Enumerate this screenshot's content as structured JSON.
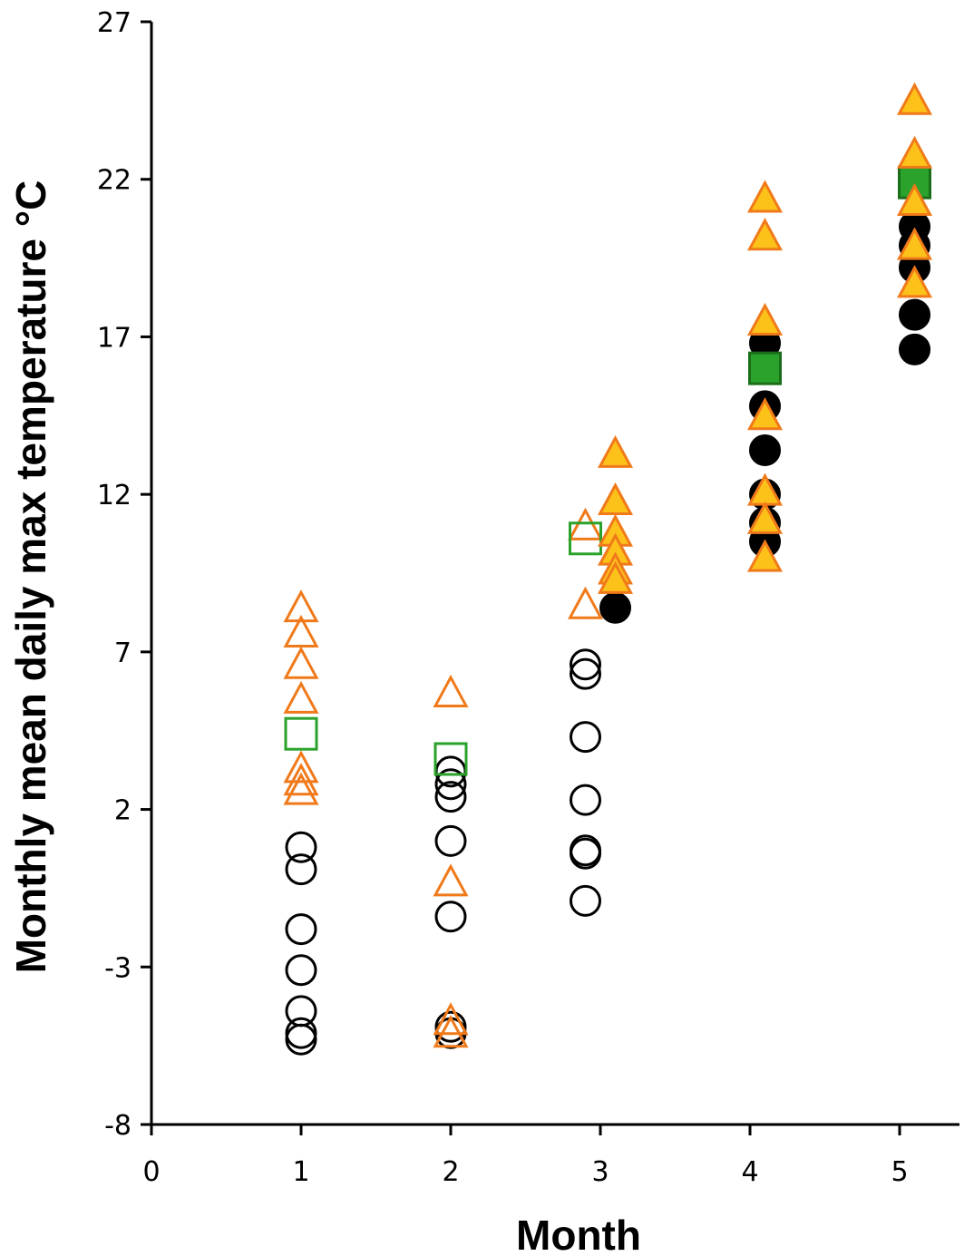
{
  "chart_data": {
    "type": "scatter",
    "title": "",
    "xlabel": "Month",
    "ylabel": "Monthly mean daily max temperature °C",
    "xlim": [
      0,
      5.4
    ],
    "ylim": [
      -8,
      27
    ],
    "xticks": [
      0,
      1,
      2,
      3,
      4,
      5
    ],
    "yticks": [
      -8,
      -3,
      2,
      7,
      12,
      17,
      22,
      27
    ],
    "grid": false,
    "legend": "none",
    "series": [
      {
        "marker": "circle-open",
        "stroke": "#000000",
        "fill": "none",
        "points": [
          [
            1,
            0.8
          ],
          [
            1,
            0.1
          ],
          [
            1,
            -1.8
          ],
          [
            1,
            -3.1
          ],
          [
            1,
            -4.4
          ],
          [
            1,
            -5.1
          ],
          [
            1,
            -5.3
          ],
          [
            2,
            3.2
          ],
          [
            2,
            2.8
          ],
          [
            2,
            2.4
          ],
          [
            2,
            1.0
          ],
          [
            2,
            -1.4
          ],
          [
            2,
            -4.9
          ],
          [
            2,
            -5.1
          ],
          [
            2.9,
            6.6
          ],
          [
            2.9,
            6.3
          ],
          [
            2.9,
            4.3
          ],
          [
            2.9,
            2.3
          ],
          [
            2.9,
            0.7
          ],
          [
            2.9,
            0.6
          ],
          [
            2.9,
            -0.9
          ]
        ]
      },
      {
        "marker": "triangle-open",
        "stroke": "#f07a1a",
        "fill": "none",
        "points": [
          [
            1,
            8.4
          ],
          [
            1,
            7.6
          ],
          [
            1,
            6.6
          ],
          [
            1,
            5.5
          ],
          [
            1,
            3.3
          ],
          [
            1,
            2.9
          ],
          [
            1,
            2.6
          ],
          [
            2,
            5.7
          ],
          [
            2,
            -0.3
          ],
          [
            2,
            -4.7
          ],
          [
            2,
            -5.1
          ],
          [
            2.9,
            8.5
          ],
          [
            2.9,
            11.0
          ]
        ]
      },
      {
        "marker": "square-open",
        "stroke": "#2ba22b",
        "fill": "none",
        "points": [
          [
            1,
            4.4
          ],
          [
            2,
            3.6
          ],
          [
            2.9,
            10.6
          ]
        ]
      },
      {
        "marker": "circle-filled",
        "stroke": "#000000",
        "fill": "#000000",
        "points": [
          [
            3.1,
            8.4
          ],
          [
            4.1,
            16.8
          ],
          [
            4.1,
            14.8
          ],
          [
            4.1,
            13.4
          ],
          [
            4.1,
            12.0
          ],
          [
            4.1,
            11.1
          ],
          [
            4.1,
            10.5
          ],
          [
            5.1,
            20.5
          ],
          [
            5.1,
            19.9
          ],
          [
            5.1,
            19.2
          ],
          [
            5.1,
            17.7
          ],
          [
            5.1,
            16.6
          ]
        ]
      },
      {
        "marker": "square-filled",
        "stroke": "#1a6e1a",
        "fill": "#2ba22b",
        "points": [
          [
            4.1,
            16.0
          ],
          [
            5.1,
            21.9
          ]
        ]
      },
      {
        "marker": "triangle-filled",
        "stroke": "#f07a1a",
        "fill": "#fcc21a",
        "points": [
          [
            3.1,
            13.3
          ],
          [
            3.1,
            11.8
          ],
          [
            3.1,
            10.8
          ],
          [
            3.1,
            10.2
          ],
          [
            3.1,
            9.6
          ],
          [
            3.1,
            9.3
          ],
          [
            4.1,
            21.4
          ],
          [
            4.1,
            20.2
          ],
          [
            4.1,
            17.5
          ],
          [
            4.1,
            14.5
          ],
          [
            4.1,
            12.1
          ],
          [
            4.1,
            11.2
          ],
          [
            4.1,
            10.0
          ],
          [
            5.1,
            24.5
          ],
          [
            5.1,
            22.8
          ],
          [
            5.1,
            21.3
          ],
          [
            5.1,
            19.9
          ],
          [
            5.1,
            18.7
          ]
        ]
      }
    ]
  }
}
